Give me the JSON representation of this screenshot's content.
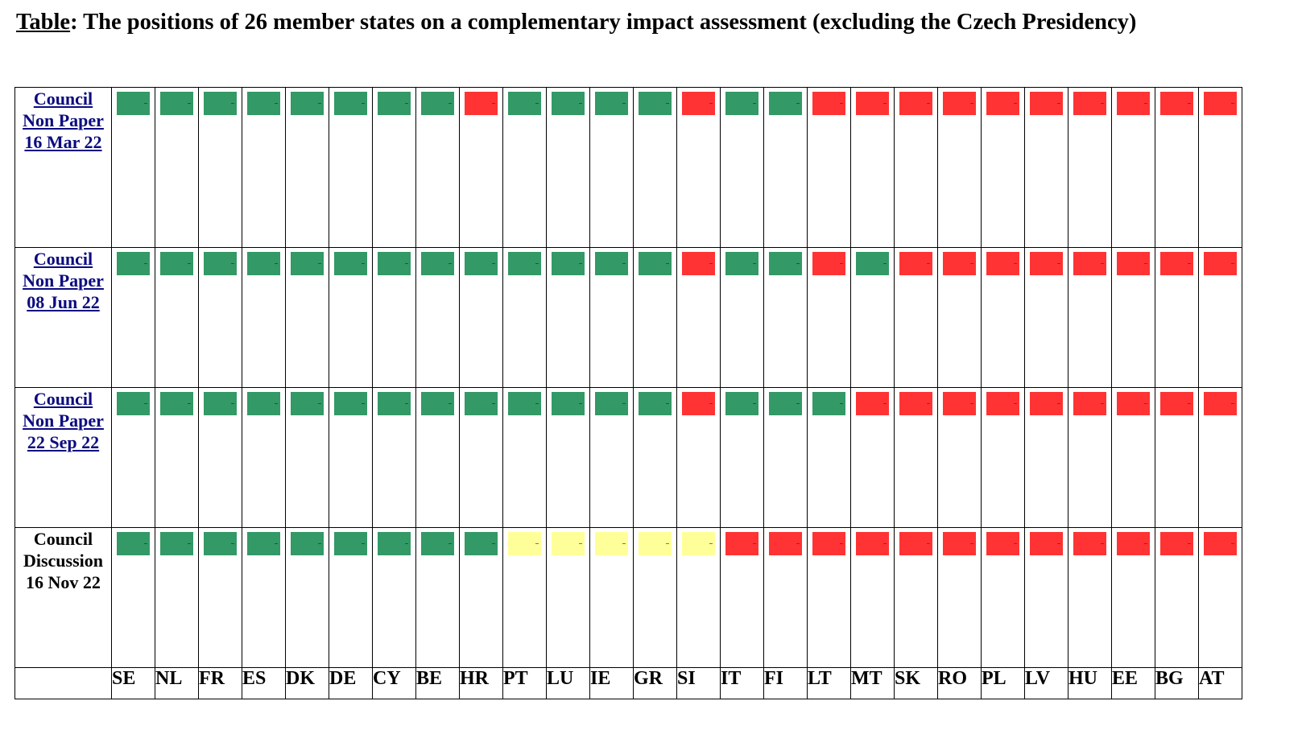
{
  "title": {
    "label": "Table",
    "text": ": The positions of 26 member states on a complementary impact assessment (excluding the Czech Presidency)"
  },
  "colors": {
    "green": "#339966",
    "red": "#ff3333",
    "yellow": "#ffff99"
  },
  "rows": [
    {
      "lines": [
        "Council",
        "Non Paper",
        "16 Mar 22"
      ],
      "linked": true,
      "statuses": [
        "green",
        "green",
        "green",
        "green",
        "green",
        "green",
        "green",
        "green",
        "red",
        "green",
        "green",
        "green",
        "green",
        "red",
        "green",
        "green",
        "red",
        "red",
        "red",
        "red",
        "red",
        "red",
        "red",
        "red",
        "red",
        "red"
      ]
    },
    {
      "lines": [
        "Council",
        "Non Paper",
        "08 Jun 22"
      ],
      "linked": true,
      "statuses": [
        "green",
        "green",
        "green",
        "green",
        "green",
        "green",
        "green",
        "green",
        "green",
        "green",
        "green",
        "green",
        "green",
        "red",
        "green",
        "green",
        "red",
        "green",
        "red",
        "red",
        "red",
        "red",
        "red",
        "red",
        "red",
        "red"
      ]
    },
    {
      "lines": [
        "Council",
        "Non Paper",
        "22 Sep 22"
      ],
      "linked": true,
      "statuses": [
        "green",
        "green",
        "green",
        "green",
        "green",
        "green",
        "green",
        "green",
        "green",
        "green",
        "green",
        "green",
        "green",
        "red",
        "green",
        "green",
        "green",
        "red",
        "red",
        "red",
        "red",
        "red",
        "red",
        "red",
        "red",
        "red"
      ]
    },
    {
      "lines": [
        "Council",
        "Discussion",
        "16 Nov 22"
      ],
      "linked": false,
      "statuses": [
        "green",
        "green",
        "green",
        "green",
        "green",
        "green",
        "green",
        "green",
        "green",
        "yellow",
        "yellow",
        "yellow",
        "yellow",
        "yellow",
        "red",
        "red",
        "red",
        "red",
        "red",
        "red",
        "red",
        "red",
        "red",
        "red",
        "red",
        "red"
      ]
    }
  ],
  "countries": [
    "SE",
    "NL",
    "FR",
    "ES",
    "DK",
    "DE",
    "CY",
    "BE",
    "HR",
    "PT",
    "LU",
    "IE",
    "GR",
    "SI",
    "IT",
    "FI",
    "LT",
    "MT",
    "SK",
    "RO",
    "PL",
    "LV",
    "HU",
    "EE",
    "BG",
    "AT"
  ]
}
